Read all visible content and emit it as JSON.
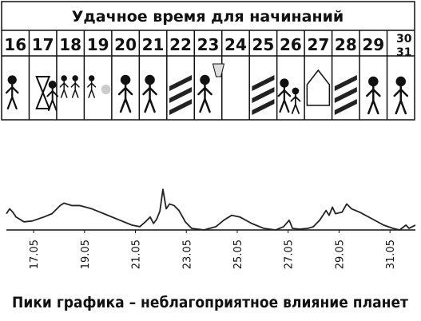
{
  "header": {
    "title": "Удачное время для начинаний",
    "days": [
      "16",
      "17",
      "18",
      "19",
      "20",
      "21",
      "22",
      "23",
      "24",
      "25",
      "26",
      "27",
      "28",
      "29"
    ],
    "last_days": [
      "30",
      "31"
    ]
  },
  "chart_data": {
    "type": "line",
    "caption": "Пики графика – неблагоприятное влияние планет",
    "x": [
      15.93,
      16.06,
      16.18,
      16.31,
      16.62,
      16.94,
      17.41,
      17.72,
      18.04,
      18.19,
      18.51,
      18.82,
      19.29,
      19.76,
      20.39,
      20.86,
      21.17,
      21.39,
      21.58,
      21.71,
      21.83,
      21.96,
      22.08,
      22.21,
      22.34,
      22.52,
      22.71,
      22.96,
      23.21,
      23.69,
      24.16,
      24.47,
      24.78,
      25.1,
      25.57,
      26.04,
      26.51,
      26.82,
      27.04,
      27.17,
      27.45,
      27.77,
      27.99,
      28.24,
      28.49,
      28.61,
      28.74,
      28.86,
      29.12,
      29.3,
      29.49,
      29.8,
      30.28,
      30.75,
      31.12,
      31.38,
      31.63,
      31.75,
      32.0
    ],
    "values": [
      20,
      26,
      22,
      16,
      10,
      11,
      16,
      20,
      30,
      33,
      30,
      30,
      26,
      20,
      12,
      6,
      4,
      10,
      16,
      8,
      13,
      23,
      50,
      26,
      32,
      30,
      24,
      10,
      2,
      0,
      4,
      12,
      18,
      16,
      8,
      2,
      0,
      4,
      12,
      2,
      1,
      2,
      4,
      12,
      24,
      18,
      28,
      20,
      22,
      32,
      26,
      22,
      14,
      6,
      2,
      0,
      6,
      2,
      6
    ],
    "color": "#222222",
    "xlim": [
      15.93,
      32.0
    ],
    "ylim": [
      0,
      55
    ],
    "xticks": [
      {
        "value": 17,
        "label": "17.05"
      },
      {
        "value": 19,
        "label": "19.05"
      },
      {
        "value": 21,
        "label": "21.05"
      },
      {
        "value": 23,
        "label": "23.05"
      },
      {
        "value": 25,
        "label": "25.05"
      },
      {
        "value": 27,
        "label": "27.05"
      },
      {
        "value": 29,
        "label": "29.05"
      },
      {
        "value": 31,
        "label": "31.05"
      }
    ]
  }
}
